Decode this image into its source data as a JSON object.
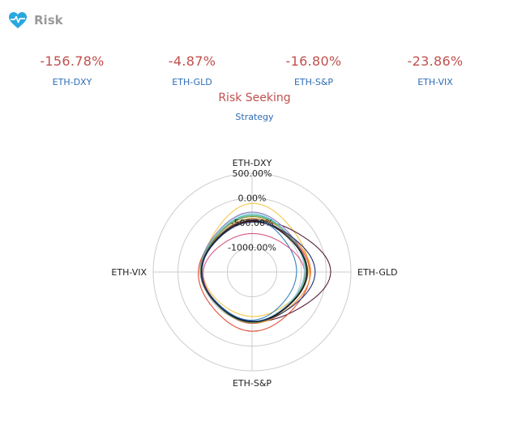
{
  "header": {
    "title": "Risk",
    "icon": "heart-pulse-icon",
    "icon_color": "#29a8e0"
  },
  "metrics": [
    {
      "value": "-156.78%",
      "label": "ETH-DXY"
    },
    {
      "value": "-4.87%",
      "label": "ETH-GLD"
    },
    {
      "value": "-16.80%",
      "label": "ETH-S&P"
    },
    {
      "value": "-23.86%",
      "label": "ETH-VIX"
    }
  ],
  "strategy": {
    "value": "Risk Seeking",
    "label": "Strategy"
  },
  "colors": {
    "value": "#c0504d",
    "label": "#2e6db4",
    "grid": "#cccccc"
  },
  "chart_data": {
    "type": "radar",
    "axes": [
      "ETH-DXY",
      "ETH-GLD",
      "ETH-S&P",
      "ETH-VIX"
    ],
    "radial_ticks": [
      "500.00%",
      "0.00%",
      "-500.00%",
      "-1000.00%"
    ],
    "radial_range": [
      -1500,
      500
    ],
    "series": [
      {
        "color": "#f2c744",
        "values": [
          350,
          30,
          -300,
          -160
        ]
      },
      {
        "color": "#4b1430",
        "values": [
          -100,
          620,
          -160,
          -110
        ]
      },
      {
        "color": "#e3442e",
        "values": [
          -130,
          60,
          100,
          -50
        ]
      },
      {
        "color": "#2f7fb8",
        "values": [
          -70,
          -300,
          -200,
          -150
        ]
      },
      {
        "color": "#d64f82",
        "values": [
          -460,
          -80,
          -110,
          -180
        ]
      },
      {
        "color": "#f28a2b",
        "values": [
          -50,
          80,
          -120,
          -140
        ]
      },
      {
        "color": "#6b8e23",
        "values": [
          0,
          -20,
          -130,
          -120
        ]
      },
      {
        "color": "#2ab0b8",
        "values": [
          50,
          -60,
          -150,
          -130
        ]
      },
      {
        "color": "#9ad0e0",
        "values": [
          90,
          -90,
          -170,
          -110
        ]
      },
      {
        "color": "#8c7ab8",
        "values": [
          120,
          -40,
          -160,
          -100
        ]
      },
      {
        "color": "#7fb77e",
        "values": [
          20,
          -50,
          -140,
          -105
        ]
      },
      {
        "color": "#555555",
        "values": [
          -80,
          0,
          -150,
          -120
        ]
      },
      {
        "color": "#000000",
        "values": [
          -120,
          -20,
          -160,
          -135
        ]
      },
      {
        "color": "#1a2d6e",
        "values": [
          -150,
          200,
          -170,
          -140
        ]
      }
    ]
  }
}
